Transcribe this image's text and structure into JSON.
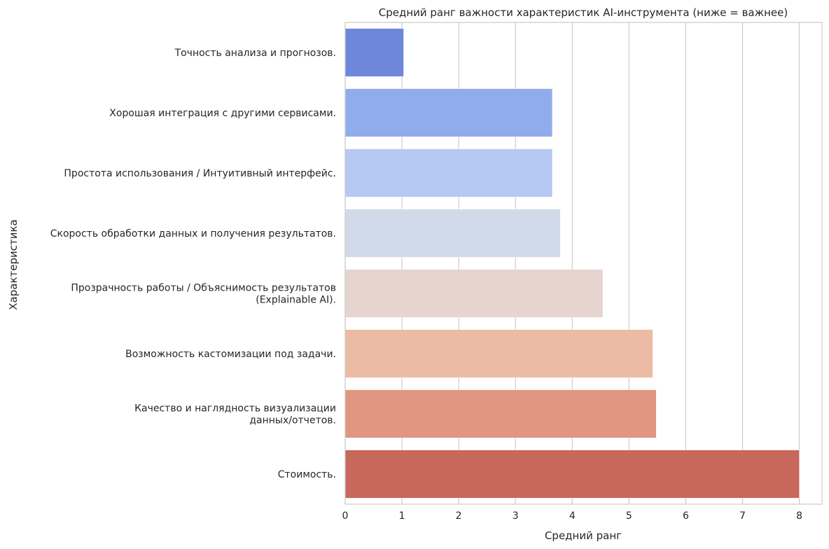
{
  "chart_data": {
    "type": "bar",
    "orientation": "horizontal",
    "title": "Средний ранг важности характеристик AI-инструмента (ниже = важнее)",
    "xlabel": "Средний ранг",
    "ylabel": "Характеристика",
    "xlim": [
      0,
      8.4
    ],
    "xticks": [
      0,
      1,
      2,
      3,
      4,
      5,
      6,
      7,
      8
    ],
    "grid": "vertical",
    "categories": [
      [
        "Точность анализа и прогнозов."
      ],
      [
        "Хорошая интеграция с другими сервисами."
      ],
      [
        "Простота использования / Интуитивный интерфейс."
      ],
      [
        "Скорость обработки данных и получения результатов."
      ],
      [
        "Прозрачность работы / Объяснимость результатов",
        "(Explainable AI)."
      ],
      [
        "Возможность кастомизации под задачи."
      ],
      [
        "Качество и наглядность визуализации",
        "данных/отчетов."
      ],
      [
        "Стоимость."
      ]
    ],
    "values": [
      1.03,
      3.65,
      3.65,
      3.79,
      4.54,
      5.42,
      5.48,
      8.0
    ],
    "colors": [
      "#6f87d8",
      "#90acec",
      "#b5c9f2",
      "#d1dae8",
      "#e5d5ce",
      "#ecbba6",
      "#e09680",
      "#c8675c"
    ]
  }
}
